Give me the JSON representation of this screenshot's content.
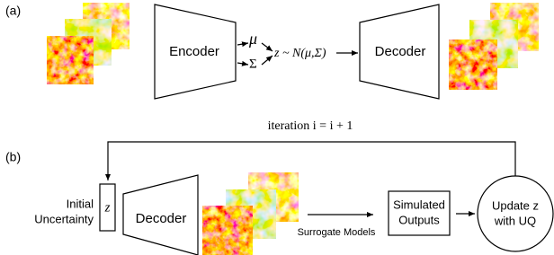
{
  "panel_a": {
    "label": "(a)",
    "encoder": "Encoder",
    "mu": "μ",
    "sigma": "Σ",
    "latent": "z ~ N(μ,Σ)",
    "decoder": "Decoder"
  },
  "panel_b": {
    "label": "(b)",
    "loop": "iteration i = i + 1",
    "initial_uncertainty": [
      "Initial",
      "Uncertainty"
    ],
    "z": "z",
    "decoder": "Decoder",
    "surrogate": "Surrogate Models",
    "simulated": [
      "Simulated",
      "Outputs"
    ],
    "update": [
      "Update z",
      "with UQ"
    ]
  }
}
